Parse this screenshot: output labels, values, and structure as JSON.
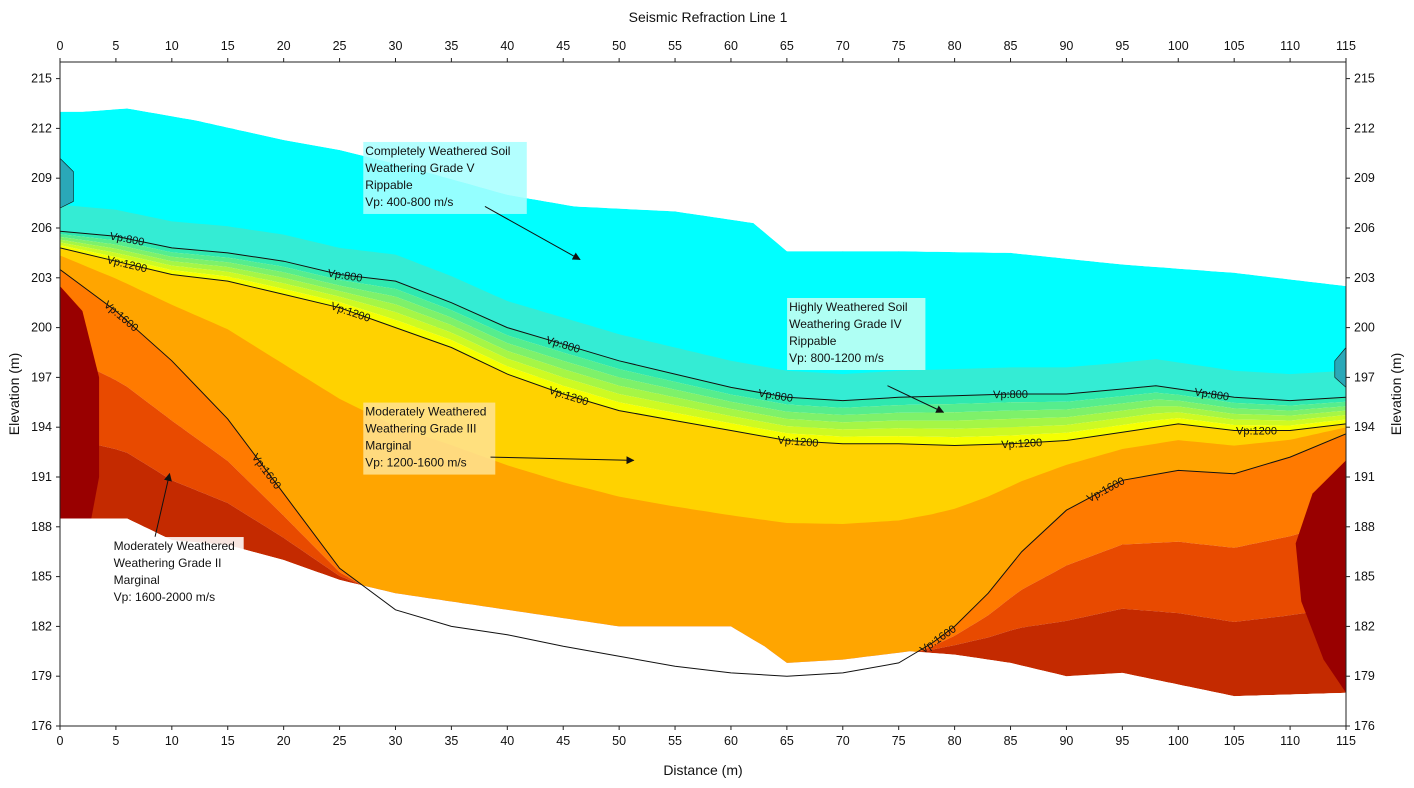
{
  "chart_data": {
    "type": "heatmap",
    "title": "Seismic Refraction Line 1",
    "xlabel": "Distance (m)",
    "ylabel": "Elevation (m)",
    "y2label": "Elevation (m)",
    "xlim": [
      0,
      115
    ],
    "ylim": [
      176,
      216
    ],
    "x_ticks": [
      0,
      5,
      10,
      15,
      20,
      25,
      30,
      35,
      40,
      45,
      50,
      55,
      60,
      65,
      70,
      75,
      80,
      85,
      90,
      95,
      100,
      105,
      110,
      115
    ],
    "y_ticks": [
      176,
      179,
      182,
      185,
      188,
      191,
      194,
      197,
      200,
      203,
      206,
      209,
      212,
      215
    ],
    "grid": true,
    "ticks_on_top_and_right": true,
    "colors": {
      "vp_400_800": "#00ffff",
      "vp_800_1200_start": "#2ee8b0",
      "vp_800_1200_end": "#f5ff00",
      "vp_1200_1600_light": "#ffd700",
      "vp_1200_1600_dark": "#ffa500",
      "vp_1600_2000_1": "#ff7a00",
      "vp_1600_2000_2": "#e84a00",
      "vp_1600_2000_3": "#c42a00",
      "vp_1600_2000_4": "#990000",
      "contour_line": "#111111"
    },
    "surface": {
      "x": [
        0,
        2,
        6,
        12,
        20,
        25,
        31,
        40,
        46,
        55,
        62,
        65,
        75,
        85,
        95,
        105,
        110,
        115
      ],
      "y": [
        213.0,
        213.0,
        213.2,
        212.5,
        211.3,
        210.7,
        209.7,
        208.0,
        207.3,
        207.0,
        206.3,
        204.6,
        204.6,
        204.5,
        203.8,
        203.3,
        202.9,
        202.5
      ]
    },
    "bottom_boundary": {
      "x": [
        0,
        6,
        10,
        15,
        20,
        25,
        30,
        40,
        50,
        60,
        63,
        65,
        70,
        76,
        80,
        85,
        90,
        95,
        100,
        105,
        115
      ],
      "y": [
        188.5,
        188.5,
        187.2,
        186.9,
        186.0,
        184.8,
        184.0,
        183.0,
        182.0,
        182.0,
        180.8,
        179.8,
        180.0,
        180.5,
        180.3,
        179.8,
        179.0,
        179.2,
        178.5,
        177.8,
        178.0
      ]
    },
    "contours": [
      {
        "name": "Vp:800",
        "x": [
          0,
          5,
          10,
          15,
          20,
          25,
          30,
          35,
          40,
          45,
          50,
          55,
          60,
          65,
          70,
          75,
          80,
          85,
          90,
          95,
          98,
          100,
          105,
          110,
          115
        ],
        "y": [
          205.8,
          205.5,
          204.8,
          204.5,
          204.0,
          203.2,
          202.8,
          201.5,
          200.0,
          199.0,
          198.0,
          197.2,
          196.4,
          195.8,
          195.6,
          195.8,
          195.9,
          196.0,
          196.0,
          196.3,
          196.5,
          196.3,
          195.8,
          195.6,
          195.8
        ],
        "labels": [
          {
            "x": 6,
            "y": 205.3
          },
          {
            "x": 25.5,
            "y": 202.8
          },
          {
            "x": 45,
            "y": 199.0
          },
          {
            "x": 64,
            "y": 195.8
          },
          {
            "x": 85,
            "y": 196.0
          },
          {
            "x": 103,
            "y": 195.9
          }
        ]
      },
      {
        "name": "Vp:1200",
        "x": [
          0,
          5,
          10,
          15,
          20,
          25,
          30,
          35,
          40,
          45,
          50,
          55,
          60,
          65,
          70,
          75,
          80,
          85,
          90,
          95,
          100,
          105,
          110,
          115
        ],
        "y": [
          204.8,
          204.0,
          203.2,
          202.8,
          202.0,
          201.2,
          200.0,
          198.8,
          197.2,
          196.0,
          195.0,
          194.4,
          193.8,
          193.2,
          193.0,
          193.0,
          192.9,
          193.0,
          193.2,
          193.7,
          194.2,
          193.8,
          193.8,
          194.2
        ],
        "labels": [
          {
            "x": 6,
            "y": 203.7
          },
          {
            "x": 26,
            "y": 200.6
          },
          {
            "x": 45.5,
            "y": 196.0
          },
          {
            "x": 66,
            "y": 193.1
          },
          {
            "x": 86,
            "y": 192.9
          },
          {
            "x": 107,
            "y": 193.8
          }
        ]
      },
      {
        "name": "Vp:1600",
        "x": [
          0,
          2,
          5,
          10,
          15,
          20,
          25,
          30,
          35,
          40,
          45,
          50,
          55,
          60,
          65,
          70,
          75,
          78,
          80,
          83,
          86,
          90,
          95,
          100,
          105,
          110,
          115
        ],
        "y": [
          203.5,
          202.5,
          201.0,
          198.0,
          194.5,
          190.0,
          185.5,
          183.0,
          182.0,
          181.5,
          180.8,
          180.2,
          179.6,
          179.2,
          179.0,
          179.2,
          179.8,
          181.0,
          182.0,
          184.0,
          186.5,
          189.0,
          190.8,
          191.4,
          191.2,
          192.2,
          193.6
        ],
        "labels": [
          {
            "x": 5.5,
            "y": 200.1
          },
          {
            "x": 18.5,
            "y": 189.5
          },
          {
            "x": 78.5,
            "y": 181.2
          },
          {
            "x": 93.5,
            "y": 189.0
          }
        ]
      }
    ],
    "annotations": [
      {
        "lines": [
          "Completely Weathered Soil",
          "Weathering Grade V",
          "Rippable",
          "Vp: 400-800 m/s"
        ],
        "box_x": 27.3,
        "box_y": 210.4,
        "arrow_from": [
          38,
          207.3
        ],
        "arrow_to": [
          46.5,
          204.1
        ],
        "box_color": "#a8ffff"
      },
      {
        "lines": [
          "Highly Weathered Soil",
          "Weathering Grade IV",
          "Rippable",
          "Vp: 800-1200 m/s"
        ],
        "box_x": 65.2,
        "box_y": 201.0,
        "arrow_from": [
          74,
          196.5
        ],
        "arrow_to": [
          79,
          194.9
        ],
        "box_color": "#c7fff3"
      },
      {
        "lines": [
          "Moderately Weathered",
          "Weathering Grade III",
          "Marginal",
          "Vp: 1200-1600 m/s"
        ],
        "box_x": 27.3,
        "box_y": 194.7,
        "arrow_from": [
          38.5,
          192.2
        ],
        "arrow_to": [
          51.3,
          192.0
        ],
        "box_color": "#ffe190"
      },
      {
        "lines": [
          "Moderately Weathered",
          "Weathering Grade II",
          "Marginal",
          "Vp: 1600-2000 m/s"
        ],
        "box_x": 4.8,
        "box_y": 186.6,
        "arrow_from": [
          8.5,
          187.4
        ],
        "arrow_to": [
          9.8,
          191.2
        ],
        "box_color": "#ffffff"
      }
    ]
  }
}
